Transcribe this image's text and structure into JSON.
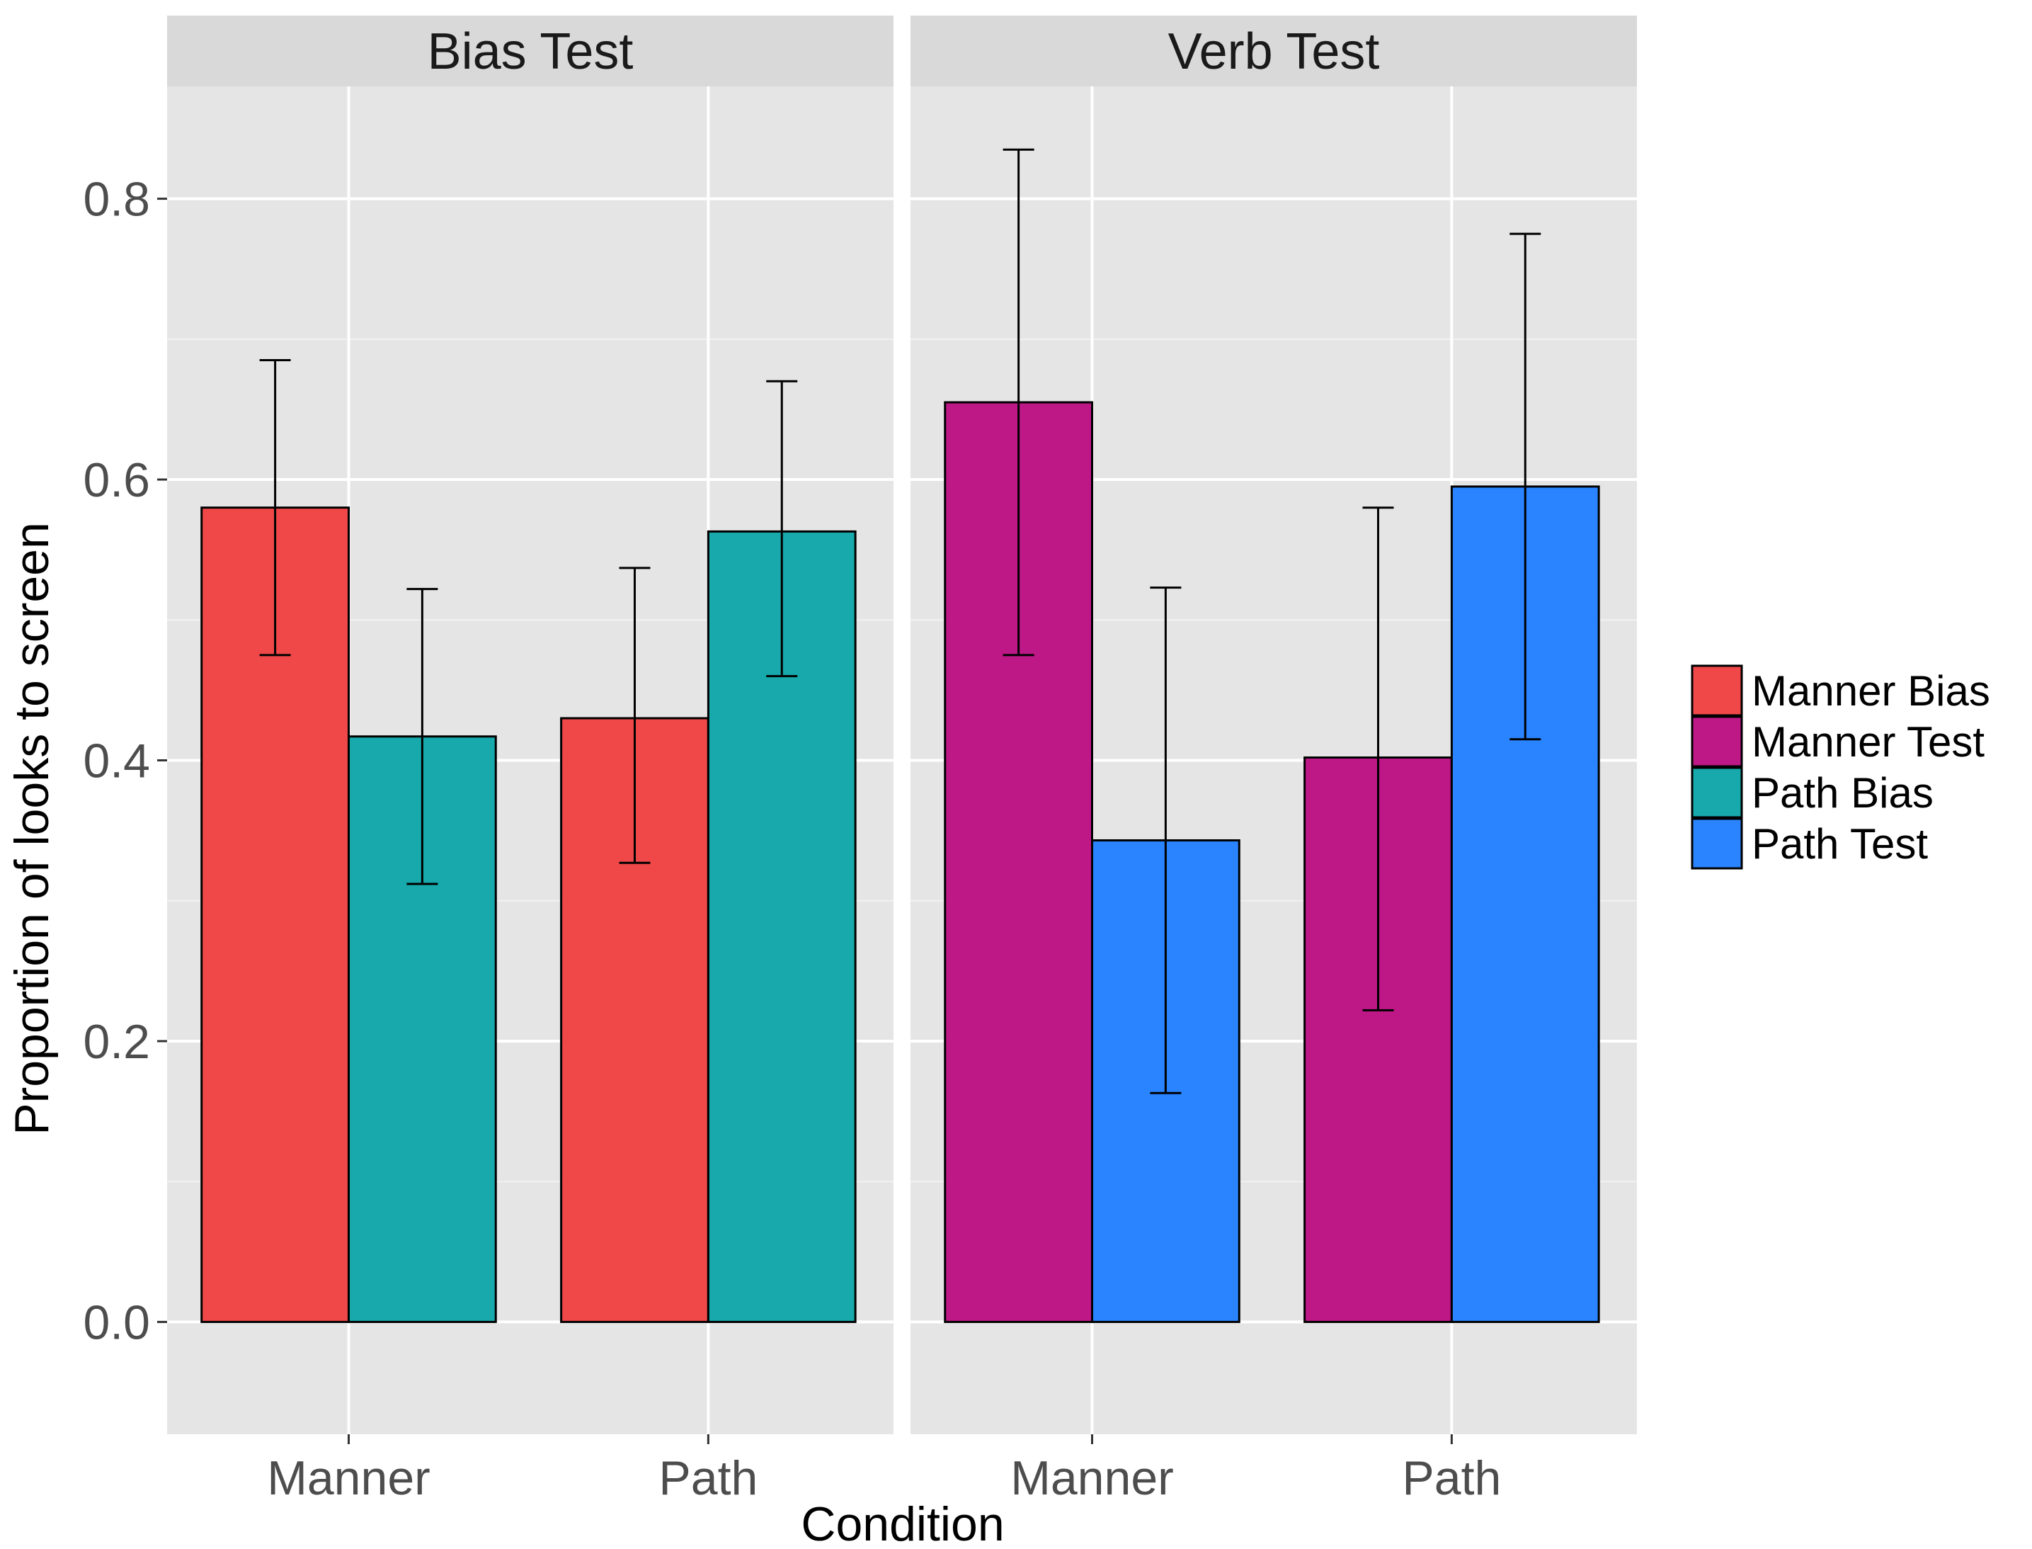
{
  "chart_data": {
    "type": "bar",
    "xlabel": "Condition",
    "ylabel": "Proportion of looks to screen",
    "ylim": [
      -0.08,
      0.88
    ],
    "yticks": [
      0.0,
      0.2,
      0.4,
      0.6,
      0.8
    ],
    "ytick_labels": [
      "0.0",
      "0.2",
      "0.4",
      "0.6",
      "0.8"
    ],
    "grid": true,
    "legend_position": "right",
    "legend": [
      {
        "name": "Manner Bias",
        "color": "#F04848"
      },
      {
        "name": "Manner Test",
        "color": "#BE1887"
      },
      {
        "name": "Path Bias",
        "color": "#17A9AB"
      },
      {
        "name": "Path Test",
        "color": "#2A84FF"
      }
    ],
    "panels": [
      {
        "title": "Bias Test",
        "categories": [
          "Manner",
          "Path"
        ],
        "series": [
          {
            "name": "Manner Bias",
            "color": "#F04848",
            "values": [
              0.58,
              0.43
            ],
            "err_low": [
              0.475,
              0.327
            ],
            "err_high": [
              0.685,
              0.537
            ]
          },
          {
            "name": "Path Bias",
            "color": "#17A9AB",
            "values": [
              0.417,
              0.563
            ],
            "err_low": [
              0.312,
              0.46
            ],
            "err_high": [
              0.522,
              0.67
            ]
          }
        ]
      },
      {
        "title": "Verb Test",
        "categories": [
          "Manner",
          "Path"
        ],
        "series": [
          {
            "name": "Manner Test",
            "color": "#BE1887",
            "values": [
              0.655,
              0.402
            ],
            "err_low": [
              0.475,
              0.222
            ],
            "err_high": [
              0.835,
              0.58
            ]
          },
          {
            "name": "Path Test",
            "color": "#2A84FF",
            "values": [
              0.343,
              0.595
            ],
            "err_low": [
              0.163,
              0.415
            ],
            "err_high": [
              0.523,
              0.775
            ]
          }
        ]
      }
    ]
  }
}
